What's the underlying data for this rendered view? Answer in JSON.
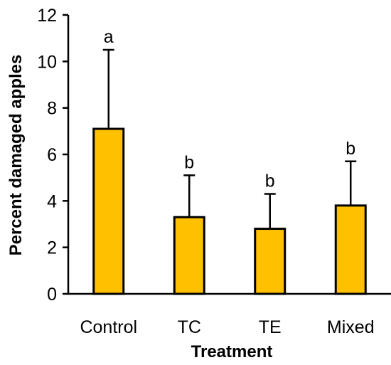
{
  "chart_data": {
    "type": "bar",
    "categories": [
      "Control",
      "TC",
      "TE",
      "Mixed"
    ],
    "values": [
      7.1,
      3.3,
      2.8,
      3.8
    ],
    "error_upper": [
      3.4,
      1.8,
      1.5,
      1.9
    ],
    "significance_labels": [
      "a",
      "b",
      "b",
      "b"
    ],
    "xlabel": "Treatment",
    "ylabel": "Percent damaged apples",
    "ylim": [
      0,
      12
    ],
    "yticks": [
      "0",
      "2",
      "4",
      "6",
      "8",
      "10",
      "12"
    ],
    "bar_color": "#FFC000",
    "bar_edge_color": "#000000",
    "grid": false,
    "legend": "none"
  }
}
